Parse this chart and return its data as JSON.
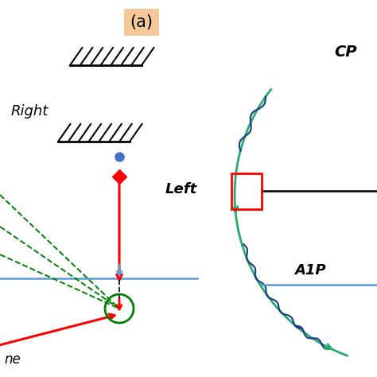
{
  "bg_color": "#ffffff",
  "title": "(a)",
  "title_box_color": "#f5c89a",
  "label_right": "Right",
  "label_ne": "ne",
  "label_cp": "CP",
  "label_left": "Left",
  "label_a1p": "A1P"
}
